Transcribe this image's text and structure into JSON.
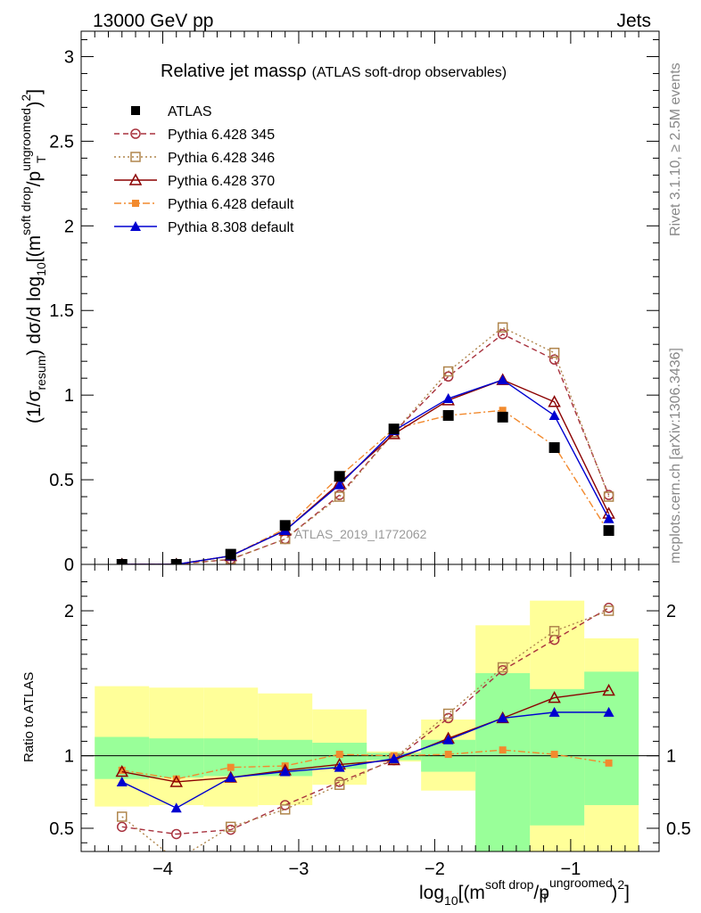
{
  "header": {
    "energy_label": "13000 GeV pp",
    "process_label": "Jets"
  },
  "side_labels": {
    "rivet": "Rivet 3.1.10, ≥ 2.5M events",
    "mcplots": "mcplots.cern.ch [arXiv:1306.3436]"
  },
  "colors": {
    "band_inner": "#99ff99",
    "band_outer": "#ffff99",
    "atlas": "#000000",
    "p345": "#a8323e",
    "p346": "#b0864d",
    "p370": "#8b0000",
    "pdefault6": "#f28a2e",
    "p8default": "#0000d0"
  },
  "chart_data": [
    {
      "type": "line",
      "title_main": "Relative jet massρ",
      "title_sub": "(ATLAS soft-drop observables)",
      "watermark": "ATLAS_2019_I1772062",
      "ylabel": {
        "pre": "(1/σ",
        "sub1": "resum",
        "mid": ") dσ/d log",
        "sub2": "10",
        "mid2": "[(m",
        "sup1": "soft drop",
        "mid3": "/p",
        "sup2": "ungroomed",
        "sub3": "T",
        "end": ")",
        "sup3": "2",
        "end2": "]"
      },
      "xlim": [
        -4.6,
        -0.35
      ],
      "ylim": [
        0,
        3.15
      ],
      "yticks": [
        0,
        0.5,
        1,
        1.5,
        2,
        2.5,
        3
      ],
      "ytick_labels": [
        "0",
        "0.5",
        "1",
        "1.5",
        "2",
        "2.5",
        "3"
      ],
      "x": [
        -4.3,
        -3.9,
        -3.5,
        -3.1,
        -2.7,
        -2.3,
        -1.9,
        -1.5,
        -1.12,
        -0.72
      ],
      "series": [
        {
          "name": "ATLAS",
          "key": "atlas",
          "marker": "filled-square",
          "line": "none",
          "values": [
            0.0,
            0.0,
            0.06,
            0.23,
            0.52,
            0.8,
            0.88,
            0.87,
            0.69,
            0.2
          ]
        },
        {
          "name": "Pythia 6.428 345",
          "key": "p345",
          "marker": "open-circle",
          "line": "dashed",
          "values": [
            0.0,
            0.0,
            0.03,
            0.15,
            0.41,
            0.78,
            1.11,
            1.36,
            1.21,
            0.41
          ]
        },
        {
          "name": "Pythia 6.428 346",
          "key": "p346",
          "marker": "open-square",
          "line": "dotted",
          "values": [
            0.0,
            0.0,
            0.03,
            0.15,
            0.4,
            0.78,
            1.14,
            1.4,
            1.25,
            0.4
          ]
        },
        {
          "name": "Pythia 6.428 370",
          "key": "p370",
          "marker": "open-triangle",
          "line": "solid",
          "values": [
            0.0,
            0.0,
            0.05,
            0.2,
            0.48,
            0.77,
            0.97,
            1.09,
            0.96,
            0.3
          ]
        },
        {
          "name": "Pythia 6.428 default",
          "key": "pdefault6",
          "marker": "filled-small-square",
          "line": "dashdot",
          "values": [
            0.0,
            0.0,
            0.05,
            0.21,
            0.52,
            0.8,
            0.88,
            0.91,
            0.7,
            0.19
          ]
        },
        {
          "name": "Pythia 8.308 default",
          "key": "p8default",
          "marker": "filled-triangle",
          "line": "solid",
          "values": [
            0.0,
            0.0,
            0.05,
            0.2,
            0.47,
            0.79,
            0.98,
            1.09,
            0.88,
            0.27
          ]
        }
      ]
    },
    {
      "type": "line",
      "ylabel": "Ratio to ATLAS",
      "xlabel": {
        "pre": "log",
        "sub1": "10",
        "mid": "[(m",
        "sup1": "soft drop",
        "mid2": "/p",
        "sup2": "ungroomed",
        "sub2": "T",
        "end": ")",
        "sup3": "2",
        "end2": "]"
      },
      "xlim": [
        -4.6,
        -0.35
      ],
      "ylim": [
        0.34,
        2.32
      ],
      "xticks": [
        -4,
        -3,
        -2,
        -1
      ],
      "xtick_labels": [
        "−4",
        "−3",
        "−2",
        "−1"
      ],
      "yticks": [
        0.5,
        1,
        2
      ],
      "ytick_labels": [
        "0.5",
        "1",
        "2"
      ],
      "reference_line": 1,
      "x": [
        -4.3,
        -3.9,
        -3.5,
        -3.1,
        -2.7,
        -2.3,
        -1.9,
        -1.5,
        -1.12,
        -0.72
      ],
      "bin_edges": [
        -4.5,
        -4.1,
        -3.7,
        -3.3,
        -2.9,
        -2.5,
        -2.1,
        -1.7,
        -1.3,
        -0.9,
        -0.5
      ],
      "band_inner": [
        [
          0.84,
          1.13
        ],
        [
          0.85,
          1.12
        ],
        [
          0.86,
          1.12
        ],
        [
          0.86,
          1.11
        ],
        [
          0.91,
          1.09
        ],
        [
          0.97,
          1.02
        ],
        [
          0.89,
          1.11
        ],
        [
          0.34,
          1.57
        ],
        [
          0.52,
          1.46
        ],
        [
          0.66,
          1.58
        ]
      ],
      "band_outer": [
        [
          0.65,
          1.48
        ],
        [
          0.66,
          1.47
        ],
        [
          0.65,
          1.47
        ],
        [
          0.66,
          1.43
        ],
        [
          0.8,
          1.32
        ],
        [
          0.96,
          1.03
        ],
        [
          0.76,
          1.25
        ],
        [
          0.34,
          1.9
        ],
        [
          0.34,
          2.07
        ],
        [
          0.34,
          1.81
        ]
      ],
      "series": [
        {
          "name": "Pythia 6.428 345",
          "key": "p345",
          "values": [
            0.51,
            0.46,
            0.49,
            0.66,
            0.82,
            0.97,
            1.26,
            1.59,
            1.8,
            2.02
          ]
        },
        {
          "name": "Pythia 6.428 346",
          "key": "p346",
          "values": [
            0.58,
            0.28,
            0.51,
            0.63,
            0.8,
            0.98,
            1.29,
            1.61,
            1.86,
            2.0
          ]
        },
        {
          "name": "Pythia 6.428 370",
          "key": "p370",
          "values": [
            0.89,
            0.82,
            0.85,
            0.9,
            0.94,
            0.97,
            1.12,
            1.26,
            1.4,
            1.45
          ]
        },
        {
          "name": "Pythia 6.428 default",
          "key": "pdefault6",
          "values": [
            0.9,
            0.84,
            0.92,
            0.93,
            1.01,
            1.0,
            1.01,
            1.04,
            1.01,
            0.95
          ]
        },
        {
          "name": "Pythia 8.308 default",
          "key": "p8default",
          "values": [
            0.82,
            0.64,
            0.85,
            0.89,
            0.92,
            0.98,
            1.11,
            1.26,
            1.3,
            1.3
          ]
        }
      ]
    }
  ]
}
